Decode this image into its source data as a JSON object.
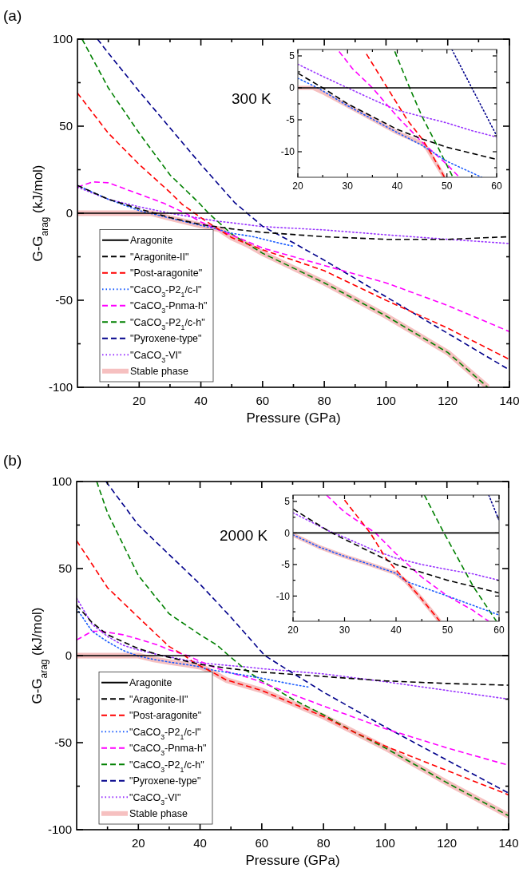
{
  "chart_data": [
    {
      "type": "line",
      "title": "(a)",
      "xlabel": "Pressure (GPa)",
      "ylabel": "G-G$_{arag}$ (kJ/mol)",
      "annotations": [
        "300 K"
      ],
      "xlim": [
        0,
        140
      ],
      "ylim": [
        -100,
        100
      ],
      "xticks": [
        {
          "value": 10,
          "label": null
        },
        20,
        {
          "value": 30,
          "label": null
        },
        40,
        {
          "value": 50,
          "label": null
        },
        60,
        {
          "value": 70,
          "label": null
        },
        80,
        {
          "value": 90,
          "label": null
        },
        100,
        {
          "value": 110,
          "label": null
        },
        120,
        {
          "value": 130,
          "label": null
        },
        140
      ],
      "yticks": [
        -100,
        {
          "value": -75,
          "label": null
        },
        -50,
        {
          "value": -25,
          "label": null
        },
        0,
        {
          "value": 25,
          "label": null
        },
        50,
        {
          "value": 75,
          "label": null
        },
        100
      ],
      "legend": "bottom left",
      "marker": "none",
      "series": [
        {
          "name": "Aragonite",
          "color": "#000000",
          "line_style": "solid",
          "x": [
            0,
            140
          ],
          "values": [
            0,
            0
          ]
        },
        {
          "name": "\"Aragonite-II\"",
          "color": "#000000",
          "line_style": "dashed",
          "x": [
            0,
            10,
            20,
            30,
            40,
            50,
            60,
            80,
            100,
            120,
            140
          ],
          "values": [
            16,
            8,
            2.5,
            -2.5,
            -6.5,
            -9,
            -11,
            -13.5,
            -15,
            -15,
            -13.5
          ]
        },
        {
          "name": "\"Post-aragonite\"",
          "color": "#ff0000",
          "line_style": "dashed",
          "x": [
            0,
            10,
            20,
            30,
            34,
            38,
            42,
            46,
            50,
            60,
            80,
            100,
            120,
            140
          ],
          "values": [
            69,
            46,
            28,
            12,
            5,
            0,
            -5,
            -9.5,
            -14,
            -21,
            -33,
            -50,
            -66,
            -84
          ]
        },
        {
          "name": "\"CaCO$_{3}$-P2$_{1}$/c-l\"",
          "color": "#1a5cff",
          "line_style": "dotted",
          "x": [
            0,
            10,
            20,
            30,
            40,
            45,
            50,
            57,
            65,
            70
          ],
          "values": [
            16,
            8,
            1.5,
            -2.8,
            -7,
            -9,
            -11.5,
            -13.5,
            -17,
            -19
          ]
        },
        {
          "name": "\"CaCO$_{3}$-Pnma-h\"",
          "color": "#ff00ff",
          "line_style": "dashed",
          "x": [
            0,
            5,
            10,
            20,
            28,
            35,
            40,
            45,
            52,
            60,
            80,
            100,
            120,
            140
          ],
          "values": [
            15,
            18,
            17.5,
            11,
            5.7,
            0,
            -5,
            -9,
            -14,
            -20,
            -30,
            -40,
            -53,
            -68
          ]
        },
        {
          "name": "\"CaCO$_{3}$-P2$_{1}$/c-h\"",
          "color": "#008000",
          "line_style": "dashed",
          "x": [
            1.5,
            10,
            20,
            30,
            39.5,
            42.5,
            45,
            50,
            60,
            80,
            100,
            120,
            133
          ],
          "values": [
            100,
            72,
            46,
            22,
            5.7,
            0,
            -4,
            -12,
            -23,
            -40,
            -59,
            -80,
            -100
          ]
        },
        {
          "name": "\"Pyroxene-type\"",
          "color": "#00008b",
          "line_style": "dashed",
          "x": [
            6.5,
            10,
            20,
            30,
            40,
            45,
            51,
            55,
            60,
            70,
            80,
            100,
            120,
            140
          ],
          "values": [
            100,
            92,
            70,
            49,
            28,
            18,
            6,
            0,
            -7.5,
            -17,
            -27,
            -48,
            -69,
            -90
          ]
        },
        {
          "name": "\"CaCO$_{3}$-VI\"",
          "color": "#9933ff",
          "line_style": "dotted",
          "x": [
            0,
            10,
            20,
            30,
            40,
            45,
            50,
            60,
            80,
            100,
            120,
            140
          ],
          "values": [
            15,
            8,
            3.7,
            0,
            -3,
            -4.5,
            -5.5,
            -7.7,
            -9.6,
            -12.4,
            -15,
            -17.4
          ]
        },
        {
          "name": "Stable phase",
          "color": "#f6c0c0",
          "line_style": "solid",
          "x": [
            0,
            24,
            30,
            40,
            46,
            50,
            55,
            60,
            80,
            100,
            120,
            133
          ],
          "values": [
            0,
            0,
            -2.8,
            -7,
            -9.3,
            -14,
            -18,
            -23,
            -40,
            -59,
            -80,
            -100
          ]
        }
      ]
    },
    {
      "type": "line",
      "xlim": [
        20,
        60
      ],
      "ylim": [
        -14,
        6
      ],
      "xticks": [
        20,
        {
          "value": 25,
          "label": null
        },
        30,
        {
          "value": 35,
          "label": null
        },
        40,
        {
          "value": 45,
          "label": null
        },
        50,
        {
          "value": 55,
          "label": null
        },
        60
      ],
      "yticks": [
        {
          "value": -12.5,
          "label": null
        },
        -10,
        {
          "value": -7.5,
          "label": null
        },
        -5,
        {
          "value": -2.5,
          "label": null
        },
        0,
        {
          "value": 2.5,
          "label": null
        },
        5
      ],
      "marker": "none",
      "series": [
        {
          "color": "#000000",
          "line_style": "solid",
          "x": [
            20,
            60
          ],
          "values": [
            0,
            0
          ]
        },
        {
          "color": "#000000",
          "line_style": "dashed",
          "x": [
            20,
            25,
            30,
            40,
            45,
            50,
            60
          ],
          "values": [
            2.3,
            0,
            -2.5,
            -6.5,
            -8,
            -9.3,
            -11.2
          ]
        },
        {
          "color": "#ff0000",
          "line_style": "dashed",
          "x": [
            33.8,
            38,
            42,
            45,
            47,
            49.5
          ],
          "values": [
            5.3,
            0,
            -5,
            -8,
            -10.5,
            -14
          ]
        },
        {
          "color": "#1a5cff",
          "line_style": "dotted",
          "x": [
            20,
            24,
            30,
            40,
            45,
            50,
            57
          ],
          "values": [
            1.5,
            0,
            -2.8,
            -7,
            -9,
            -11.5,
            -14
          ]
        },
        {
          "color": "#ff00ff",
          "line_style": "dashed",
          "x": [
            28.3,
            31,
            35,
            40,
            45,
            50,
            52.5
          ],
          "values": [
            5.7,
            3,
            0,
            -4.5,
            -8.5,
            -12,
            -14
          ]
        },
        {
          "color": "#008000",
          "line_style": "dashed",
          "x": [
            39.5,
            42.5,
            45,
            48,
            51.2
          ],
          "values": [
            5.7,
            0,
            -4.5,
            -9,
            -14
          ]
        },
        {
          "color": "#00008b",
          "line_style": "dotted",
          "x": [
            51,
            55,
            60
          ],
          "values": [
            6,
            0,
            -7.5
          ]
        },
        {
          "color": "#9933ff",
          "line_style": "dotted",
          "x": [
            20,
            25,
            30,
            35,
            40,
            45,
            50,
            55,
            60
          ],
          "values": [
            3.7,
            1.8,
            0,
            -1.8,
            -3.5,
            -4.5,
            -5.5,
            -6.7,
            -7.7
          ]
        },
        {
          "color": "#f6c0c0",
          "line_style": "solid",
          "x": [
            20,
            23,
            25,
            30,
            40,
            45,
            46,
            49.5
          ],
          "values": [
            0,
            0,
            -0.7,
            -2.8,
            -7,
            -8.7,
            -9.5,
            -14
          ]
        }
      ]
    },
    {
      "type": "line",
      "title": "(b)",
      "xlabel": "Pressure (GPa)",
      "ylabel": "G-G$_{arag}$ (kJ/mol)",
      "annotations": [
        "2000 K"
      ],
      "xlim": [
        0,
        140
      ],
      "ylim": [
        -100,
        100
      ],
      "xticks": [
        {
          "value": 10,
          "label": null
        },
        20,
        {
          "value": 30,
          "label": null
        },
        40,
        {
          "value": 50,
          "label": null
        },
        60,
        {
          "value": 70,
          "label": null
        },
        80,
        {
          "value": 90,
          "label": null
        },
        100,
        {
          "value": 110,
          "label": null
        },
        120,
        {
          "value": 130,
          "label": null
        },
        140
      ],
      "yticks": [
        -100,
        {
          "value": -75,
          "label": null
        },
        -50,
        {
          "value": -25,
          "label": null
        },
        0,
        {
          "value": 25,
          "label": null
        },
        50,
        {
          "value": 75,
          "label": null
        },
        100
      ],
      "legend": "bottom left",
      "marker": "none",
      "series": [
        {
          "name": "Aragonite",
          "color": "#000000",
          "line_style": "solid",
          "x": [
            0,
            140
          ],
          "values": [
            0,
            0
          ]
        },
        {
          "name": "\"Aragonite-II\"",
          "color": "#000000",
          "line_style": "dashed",
          "x": [
            0,
            5,
            10,
            20,
            27.5,
            30,
            40,
            50,
            60,
            80,
            100,
            120,
            140
          ],
          "values": [
            29,
            19,
            12,
            4,
            0,
            -1,
            -5,
            -7.5,
            -9.5,
            -12,
            -14.5,
            -16,
            -17
          ]
        },
        {
          "name": "\"Post-aragonite\"",
          "color": "#ff0000",
          "line_style": "dashed",
          "x": [
            0,
            10,
            20,
            30,
            35,
            38,
            42,
            45,
            48.5,
            60,
            80,
            90,
            100,
            120,
            140
          ],
          "values": [
            66,
            39,
            22,
            5.2,
            0,
            -4,
            -7.7,
            -10.5,
            -14,
            -20,
            -35,
            -44,
            -52,
            -66,
            -80
          ]
        },
        {
          "name": "\"CaCO$_{3}$-P2$_{1}$/c-l\"",
          "color": "#1a5cff",
          "line_style": "dotted",
          "x": [
            0,
            5,
            10,
            15,
            20,
            25,
            30,
            35,
            40,
            42,
            50,
            55,
            60,
            70,
            75
          ],
          "values": [
            27,
            14,
            8,
            3,
            -0.3,
            -2.2,
            -3.7,
            -5,
            -6.4,
            -7.7,
            -10,
            -11.5,
            -13,
            -16.5,
            -18
          ]
        },
        {
          "name": "\"CaCO$_{3}$-Pnma-h\"",
          "color": "#ff00ff",
          "line_style": "dashed",
          "x": [
            0,
            5,
            8,
            15,
            20,
            26.5,
            30,
            36,
            40,
            45,
            50,
            55,
            58,
            60,
            80,
            100,
            120,
            140
          ],
          "values": [
            9,
            14,
            14,
            12,
            9.5,
            6,
            3.3,
            0,
            -3.3,
            -7,
            -10,
            -12.3,
            -14,
            -15.5,
            -29,
            -42,
            -53,
            -63
          ]
        },
        {
          "name": "\"CaCO$_{3}$-P2$_{1}$/c-h\"",
          "color": "#008000",
          "line_style": "dashed",
          "x": [
            6.5,
            10,
            20,
            30,
            40,
            45.5,
            49.3,
            52,
            55,
            59.5,
            70,
            80,
            90,
            100,
            120,
            140
          ],
          "values": [
            100,
            82,
            46,
            24,
            12,
            6,
            0,
            -4,
            -8.5,
            -14,
            -25,
            -34,
            -44,
            -53,
            -73,
            -92
          ]
        },
        {
          "name": "\"Pyroxene-type\"",
          "color": "#00008b",
          "line_style": "dashed",
          "x": [
            9.5,
            20,
            30,
            40,
            50,
            58,
            60,
            61,
            70,
            80,
            100,
            120,
            140
          ],
          "values": [
            100,
            75,
            58,
            41,
            22,
            6,
            2,
            0,
            -10,
            -21,
            -41,
            -60,
            -79
          ]
        },
        {
          "name": "\"CaCO$_{3}$-VI\"",
          "color": "#9933ff",
          "line_style": "dotted",
          "x": [
            0,
            5,
            10,
            15,
            20,
            27,
            30,
            35,
            40,
            45,
            50,
            55,
            60,
            80,
            100,
            120,
            140
          ],
          "values": [
            33,
            18,
            11,
            6,
            3.2,
            0.3,
            -0.7,
            -2.5,
            -4,
            -5,
            -5.8,
            -6.5,
            -7.5,
            -10.5,
            -15,
            -20,
            -25
          ]
        },
        {
          "name": "Stable phase",
          "color": "#f6c0c0",
          "line_style": "solid",
          "x": [
            0,
            20,
            25,
            30,
            35,
            40,
            42,
            45,
            48.5,
            60,
            80,
            90,
            100,
            120,
            140
          ],
          "values": [
            0,
            0,
            -2.2,
            -3.7,
            -5,
            -6.4,
            -7.7,
            -10.5,
            -14,
            -20,
            -35,
            -44,
            -53,
            -73,
            -92
          ]
        }
      ]
    },
    {
      "type": "line",
      "xlim": [
        20,
        60
      ],
      "ylim": [
        -14,
        6
      ],
      "xticks": [
        20,
        {
          "value": 25,
          "label": null
        },
        30,
        {
          "value": 35,
          "label": null
        },
        40,
        {
          "value": 45,
          "label": null
        },
        50,
        {
          "value": 55,
          "label": null
        },
        60
      ],
      "yticks": [
        {
          "value": -12.5,
          "label": null
        },
        -10,
        {
          "value": -7.5,
          "label": null
        },
        -5,
        {
          "value": -2.5,
          "label": null
        },
        0,
        {
          "value": 2.5,
          "label": null
        },
        5
      ],
      "marker": "none",
      "series": [
        {
          "color": "#000000",
          "line_style": "solid",
          "x": [
            20,
            60
          ],
          "values": [
            0,
            0
          ]
        },
        {
          "color": "#000000",
          "line_style": "dashed",
          "x": [
            20,
            27.5,
            30,
            40,
            50,
            60
          ],
          "values": [
            3.8,
            0,
            -1,
            -5,
            -7.5,
            -9.5
          ]
        },
        {
          "color": "#ff0000",
          "line_style": "dashed",
          "x": [
            30,
            35,
            38,
            42,
            45,
            48.5
          ],
          "values": [
            5.2,
            0,
            -4,
            -7.7,
            -10.5,
            -14
          ]
        },
        {
          "color": "#1a5cff",
          "line_style": "dotted",
          "x": [
            20,
            25,
            30,
            35,
            40,
            42,
            50,
            55,
            60
          ],
          "values": [
            -0.3,
            -2.2,
            -3.7,
            -5,
            -6.4,
            -7.7,
            -10,
            -11.5,
            -13
          ]
        },
        {
          "color": "#ff00ff",
          "line_style": "dashed",
          "x": [
            26.5,
            30,
            36,
            40,
            45,
            50,
            55,
            58
          ],
          "values": [
            6,
            3.3,
            0,
            -3.3,
            -7,
            -10,
            -12.3,
            -14
          ]
        },
        {
          "color": "#008000",
          "line_style": "dashed",
          "x": [
            45.5,
            49.3,
            52,
            55,
            59.5
          ],
          "values": [
            6,
            0,
            -4,
            -8.5,
            -14
          ]
        },
        {
          "color": "#00008b",
          "line_style": "dotted",
          "x": [
            58,
            60
          ],
          "values": [
            6,
            2
          ]
        },
        {
          "color": "#9933ff",
          "line_style": "dotted",
          "x": [
            20,
            27,
            30,
            35,
            40,
            45,
            50,
            55,
            60
          ],
          "values": [
            3.2,
            0.3,
            -0.7,
            -2.5,
            -4,
            -5,
            -5.8,
            -6.5,
            -7.5
          ]
        },
        {
          "color": "#f6c0c0",
          "line_style": "solid",
          "x": [
            20,
            25,
            30,
            35,
            40,
            42,
            45,
            48.5
          ],
          "values": [
            -0.3,
            -2.2,
            -3.7,
            -5,
            -6.4,
            -7.7,
            -10.5,
            -14
          ]
        }
      ]
    }
  ]
}
